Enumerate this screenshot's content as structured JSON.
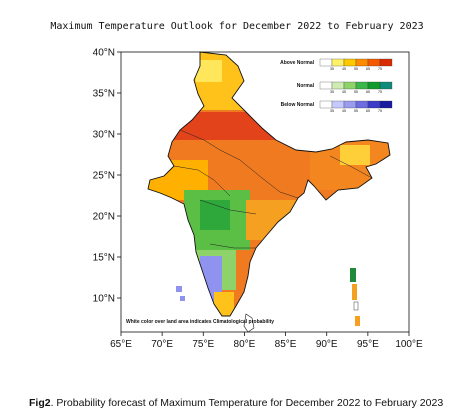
{
  "map": {
    "title": "Maximum Temperature Outlook for December 2022 to February 2023",
    "lat_ticks": [
      "40°N",
      "35°N",
      "30°N",
      "25°N",
      "20°N",
      "15°N",
      "10°N"
    ],
    "lon_ticks": [
      "65°E",
      "70°E",
      "75°E",
      "80°E",
      "85°E",
      "90°E",
      "95°E",
      "100°E"
    ],
    "lat_range": [
      7,
      40
    ],
    "lon_range": [
      65,
      100
    ],
    "note": "White color over land area indicates Climatological probability",
    "legend": {
      "above": {
        "label": "Above Normal",
        "values": [
          "35",
          "45",
          "55",
          "65",
          "75"
        ],
        "colors": [
          "#ffffff",
          "#fff06a",
          "#ffc800",
          "#ff8c00",
          "#f55a00",
          "#d92b00"
        ]
      },
      "normal": {
        "label": "Normal",
        "values": [
          "35",
          "45",
          "55",
          "65",
          "75"
        ],
        "colors": [
          "#ffffff",
          "#cdebb2",
          "#8ed36a",
          "#3cb64a",
          "#109b2c",
          "#0e8a7a"
        ]
      },
      "below": {
        "label": "Below Normal",
        "values": [
          "35",
          "45",
          "55",
          "65",
          "75"
        ],
        "colors": [
          "#ffffff",
          "#c6c9ff",
          "#9a9cf0",
          "#6b6de0",
          "#3c3cc8",
          "#1a1aa0"
        ]
      }
    }
  },
  "caption": {
    "label": "Fig2",
    "text": ". Probability  forecast of Maximum  Temperature for December 2022 to February 2023"
  }
}
